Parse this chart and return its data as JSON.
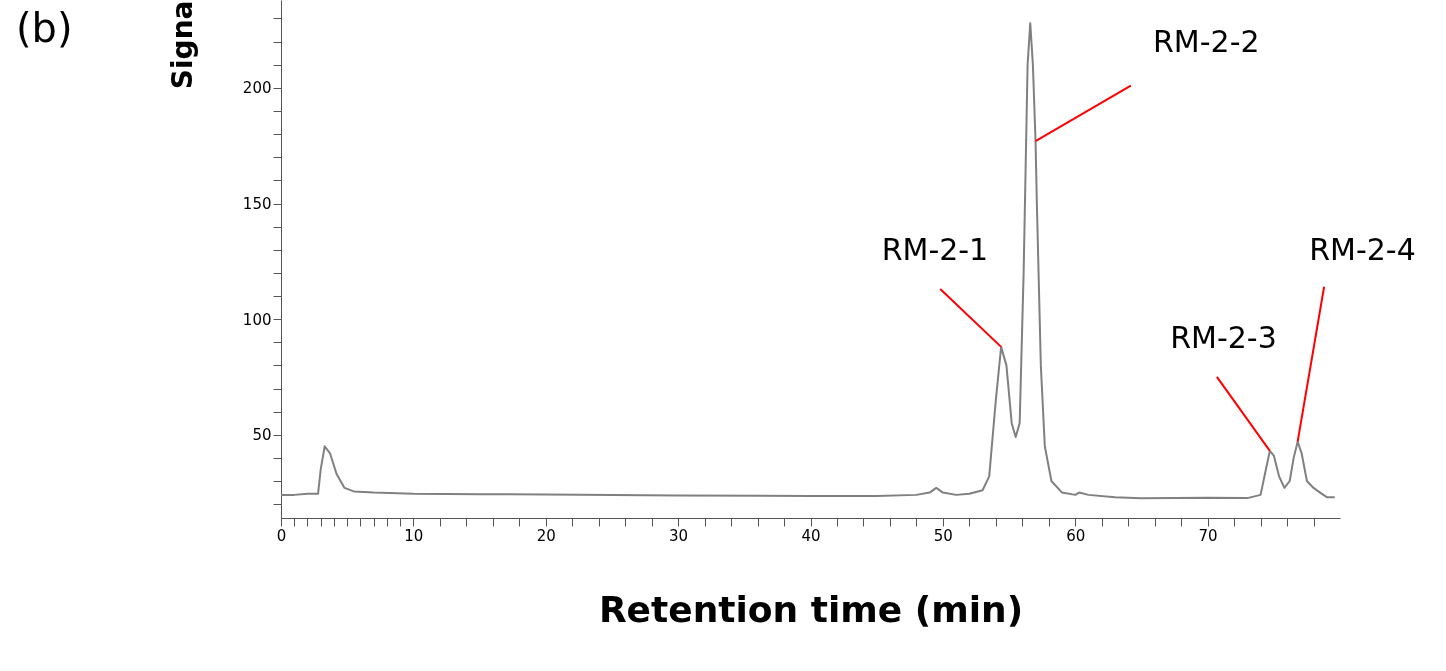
{
  "chart_data": {
    "type": "line",
    "xlabel": "Retention time (min)",
    "ylabel": "Signa",
    "annotations": [
      "(b)",
      {
        "text": "RM-2-1",
        "x": 54.4,
        "y": 88
      },
      {
        "text": "RM-2-2",
        "x": 57.0,
        "y": 177
      },
      {
        "text": "RM-2-3",
        "x": 74.7,
        "y": 43
      },
      {
        "text": "RM-2-4",
        "x": 76.8,
        "y": 47
      }
    ],
    "series": [
      {
        "color": "#808080",
        "x": [
          0,
          1,
          2,
          2.8,
          3.0,
          3.3,
          3.7,
          4.2,
          4.8,
          5.5,
          7,
          10,
          15,
          20,
          30,
          40,
          45,
          48,
          49,
          49.5,
          50,
          51,
          52,
          53,
          53.5,
          54,
          54.4,
          54.8,
          55.2,
          55.5,
          55.8,
          56.1,
          56.4,
          56.6,
          56.8,
          57.0,
          57.1,
          57.4,
          57.7,
          58.2,
          59,
          60,
          60.3,
          61,
          63,
          65,
          70,
          73,
          74,
          74.4,
          74.7,
          75,
          75.4,
          75.8,
          76.2,
          76.5,
          76.8,
          77.1,
          77.5,
          78,
          78.5,
          79,
          79.6
        ],
        "values": [
          24,
          24,
          24.5,
          24.5,
          35,
          45,
          42,
          33,
          27,
          25.5,
          25,
          24.5,
          24.3,
          24.2,
          23.7,
          23.5,
          23.5,
          24,
          25,
          27,
          25,
          24,
          24.5,
          26,
          32,
          65,
          88,
          80,
          55,
          49,
          55,
          120,
          210,
          228,
          210,
          177,
          150,
          80,
          45,
          30,
          25,
          24,
          25,
          24,
          23,
          22.5,
          22.8,
          22.6,
          24,
          35,
          43,
          41,
          32,
          27,
          30,
          40,
          47,
          42,
          30,
          27,
          25,
          23,
          23
        ]
      }
    ],
    "xlim": [
      0,
      80
    ],
    "ylim": [
      14,
      238
    ],
    "xticks": [
      0,
      {
        "value": 1,
        "label": null
      },
      {
        "value": 2,
        "label": null
      },
      {
        "value": 3,
        "label": null
      },
      {
        "value": 4,
        "label": null
      },
      {
        "value": 5,
        "label": null
      },
      {
        "value": 6,
        "label": null
      },
      {
        "value": 7,
        "label": null
      },
      {
        "value": 8,
        "label": null
      },
      {
        "value": 9,
        "label": null
      },
      10,
      {
        "value": 12,
        "label": null
      },
      {
        "value": 14,
        "label": null
      },
      {
        "value": 16,
        "label": null
      },
      {
        "value": 18,
        "label": null
      },
      20,
      {
        "value": 22,
        "label": null
      },
      {
        "value": 24,
        "label": null
      },
      {
        "value": 26,
        "label": null
      },
      {
        "value": 28,
        "label": null
      },
      30,
      {
        "value": 32,
        "label": null
      },
      {
        "value": 34,
        "label": null
      },
      {
        "value": 36,
        "label": null
      },
      {
        "value": 38,
        "label": null
      },
      40,
      {
        "value": 42,
        "label": null
      },
      {
        "value": 44,
        "label": null
      },
      {
        "value": 46,
        "label": null
      },
      {
        "value": 48,
        "label": null
      },
      50,
      {
        "value": 52,
        "label": null
      },
      {
        "value": 54,
        "label": null
      },
      {
        "value": 56,
        "label": null
      },
      {
        "value": 58,
        "label": null
      },
      60,
      {
        "value": 62,
        "label": null
      },
      {
        "value": 64,
        "label": null
      },
      {
        "value": 66,
        "label": null
      },
      {
        "value": 68,
        "label": null
      },
      70,
      {
        "value": 72,
        "label": null
      },
      {
        "value": 74,
        "label": null
      },
      {
        "value": 76,
        "label": null
      },
      {
        "value": 78,
        "label": null
      }
    ],
    "yticks": [
      {
        "value": 20,
        "label": null
      },
      {
        "value": 30,
        "label": null
      },
      {
        "value": 40,
        "label": null
      },
      50,
      {
        "value": 60,
        "label": null
      },
      {
        "value": 70,
        "label": null
      },
      {
        "value": 80,
        "label": null
      },
      {
        "value": 90,
        "label": null
      },
      100,
      {
        "value": 110,
        "label": null
      },
      {
        "value": 120,
        "label": null
      },
      {
        "value": 130,
        "label": null
      },
      {
        "value": 140,
        "label": null
      },
      150,
      {
        "value": 160,
        "label": null
      },
      {
        "value": 170,
        "label": null
      },
      {
        "value": 180,
        "label": null
      },
      {
        "value": 190,
        "label": null
      },
      200,
      {
        "value": 210,
        "label": null
      },
      {
        "value": 220,
        "label": null
      },
      {
        "value": 230,
        "label": null
      }
    ],
    "grid": false,
    "marker": "none",
    "line_style": "solid"
  }
}
